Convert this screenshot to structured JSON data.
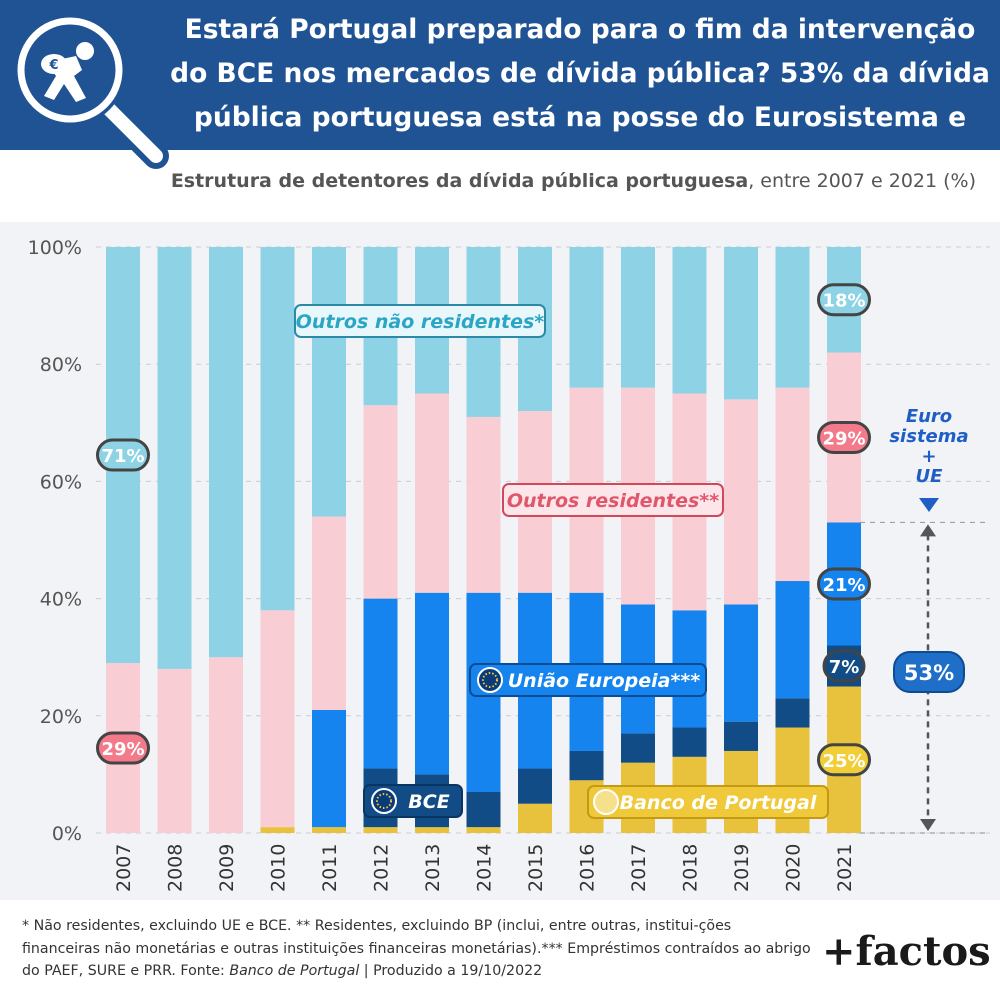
{
  "header": {
    "title_line1": "Estará Portugal preparado para o fim da intervenção",
    "title_line2": "do BCE nos mercados de dívida pública? 53% da dívida",
    "title_line3": "pública portuguesa está na posse do Eurosistema e UE.",
    "logo_icon": "magnifier-running-person-icon"
  },
  "subtitle": {
    "bold": "Estrutura de detentores da dívida pública portuguesa",
    "rest": ", entre 2007 e 2021 (%)"
  },
  "colors": {
    "header_bg": "#1f5393",
    "outros_nao_residentes": "#8ed3e5",
    "outros_residentes": "#f8cdd3",
    "uniao_europeia": "#1584ee",
    "bce": "#114c86",
    "banco_de_portugal": "#e8c23c"
  },
  "chart_data": {
    "type": "bar",
    "stacked": true,
    "title": "Estrutura de detentores da dívida pública portuguesa, entre 2007 e 2021 (%)",
    "categories": [
      "2007",
      "2008",
      "2009",
      "2010",
      "2011",
      "2012",
      "2013",
      "2014",
      "2015",
      "2016",
      "2017",
      "2018",
      "2019",
      "2020",
      "2021"
    ],
    "ylim": [
      0,
      100
    ],
    "yticks": [
      "0%",
      "20%",
      "40%",
      "60%",
      "80%",
      "100%"
    ],
    "grid": true,
    "series": [
      {
        "name": "Banco de Portugal",
        "values": [
          0,
          0,
          0,
          1,
          1,
          1,
          1,
          1,
          5,
          9,
          12,
          13,
          14,
          18,
          25
        ]
      },
      {
        "name": "BCE",
        "values": [
          0,
          0,
          0,
          0,
          0,
          10,
          9,
          6,
          6,
          5,
          5,
          5,
          5,
          5,
          7
        ]
      },
      {
        "name": "União Europeia***",
        "values": [
          0,
          0,
          0,
          0,
          20,
          29,
          31,
          34,
          30,
          27,
          22,
          20,
          20,
          20,
          21
        ]
      },
      {
        "name": "Outros residentes**",
        "values": [
          29,
          28,
          30,
          37,
          33,
          33,
          34,
          30,
          31,
          35,
          37,
          37,
          35,
          33,
          29
        ]
      },
      {
        "name": "Outros não residentes*",
        "values": [
          71,
          72,
          70,
          62,
          46,
          27,
          25,
          29,
          28,
          24,
          24,
          25,
          26,
          24,
          18
        ]
      }
    ],
    "value_labels": [
      {
        "text": "71%",
        "category": "2007",
        "series": "Outros não residentes*"
      },
      {
        "text": "29%",
        "category": "2007",
        "series": "Outros residentes**"
      },
      {
        "text": "18%",
        "category": "2021",
        "series": "Outros não residentes*"
      },
      {
        "text": "29%",
        "category": "2021",
        "series": "Outros residentes**"
      },
      {
        "text": "21%",
        "category": "2021",
        "series": "União Europeia***"
      },
      {
        "text": "7%",
        "category": "2021",
        "series": "BCE"
      },
      {
        "text": "25%",
        "category": "2021",
        "series": "Banco de Portugal"
      }
    ],
    "annotations": {
      "eurosystem_label": [
        "Euro",
        "sistema",
        "+",
        "UE"
      ],
      "total_label": "53%",
      "total_value": 53
    }
  },
  "footnote": {
    "text": "* Não residentes, excluindo UE e BCE. ** Residentes, excluindo BP (inclui, entre outras, institui-ções financeiras não monetárias e outras instituições financeiras monetárias).*** Empréstimos contraídos ao abrigo do PAEF, SURE e PRR. Fonte: ",
    "source": "Banco de Portugal",
    "produced": " | Produzido a 19/10/2022"
  },
  "brand": "+factos"
}
